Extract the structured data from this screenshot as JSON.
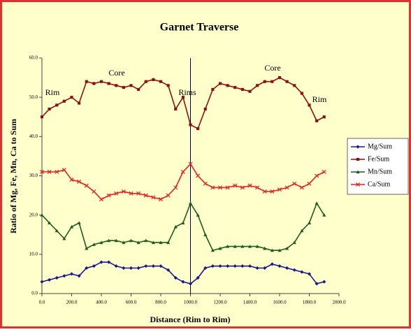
{
  "chart_data": {
    "type": "line",
    "title": "Garnet Traverse",
    "x_label": "Distance (Rim to Rim)",
    "y_label": "Ratio of Mg, Fe, Mn, Ca to Sum",
    "x": [
      0,
      50,
      100,
      150,
      200,
      250,
      300,
      350,
      400,
      450,
      500,
      550,
      600,
      650,
      700,
      750,
      800,
      850,
      900,
      950,
      1000,
      1050,
      1100,
      1150,
      1200,
      1250,
      1300,
      1350,
      1400,
      1450,
      1500,
      1550,
      1600,
      1650,
      1700,
      1750,
      1800,
      1850,
      1900
    ],
    "series": [
      {
        "name": "Mg/Sum",
        "color": "#1a1a8c",
        "values": [
          3,
          3.5,
          4,
          4.5,
          5,
          4.5,
          6.5,
          7,
          8,
          8,
          7,
          6.5,
          6.5,
          6.5,
          7,
          7,
          7,
          6,
          4,
          3,
          2.5,
          4,
          6.5,
          7,
          7,
          7,
          7,
          7,
          7,
          6.5,
          6.5,
          7.5,
          7,
          6.5,
          6,
          5.5,
          5,
          2.5,
          3
        ]
      },
      {
        "name": "Fe/Sum",
        "color": "#8b1010",
        "values": [
          45,
          47,
          48,
          49,
          50,
          48.5,
          54,
          53.5,
          54,
          53.5,
          53,
          52.5,
          53,
          52,
          54,
          54.5,
          54,
          53,
          47,
          50,
          43,
          42,
          47,
          52,
          53.5,
          53,
          52.5,
          52,
          51.5,
          53,
          54,
          54,
          55,
          54,
          53,
          51,
          48,
          44,
          45
        ]
      },
      {
        "name": "Mn/Sum",
        "color": "#1f5c1f",
        "values": [
          20,
          18,
          16,
          14,
          17,
          18,
          11.5,
          12.5,
          13,
          13.5,
          13.5,
          13,
          13.5,
          13,
          13.5,
          13,
          13,
          13,
          17,
          18,
          23,
          20,
          15,
          11,
          11.5,
          12,
          12,
          12,
          12,
          12,
          11.5,
          11,
          11,
          11.5,
          13,
          16,
          18,
          23,
          20
        ]
      },
      {
        "name": "Ca/Sum",
        "color": "#e82020",
        "values": [
          31,
          31,
          31,
          31.5,
          29,
          28.5,
          27.5,
          26,
          24,
          25,
          25.5,
          26,
          25.5,
          25.5,
          25,
          24.5,
          24,
          25,
          27,
          31,
          33,
          30,
          28,
          27,
          27,
          27,
          27.5,
          27,
          27.5,
          27,
          26,
          26,
          26.5,
          27,
          28,
          27,
          28,
          30,
          31
        ]
      }
    ],
    "annotations": [
      "Rim",
      "Core",
      "Rims",
      "Core",
      "Rim"
    ],
    "vline": 1000,
    "xlim": [
      0,
      2000
    ],
    "xticks": [
      {
        "value": 0,
        "label": "0.0"
      },
      {
        "value": 200,
        "label": "200.0"
      },
      {
        "value": 400,
        "label": "400.0"
      },
      {
        "value": 600,
        "label": "600.0"
      },
      {
        "value": 800,
        "label": "800.0"
      },
      {
        "value": 1000,
        "label": "1000.0"
      },
      {
        "value": 1200,
        "label": "1200.0"
      },
      {
        "value": 1400,
        "label": "1400.0"
      },
      {
        "value": 1600,
        "label": "1600.0"
      },
      {
        "value": 1800,
        "label": "1800.0"
      },
      {
        "value": 2000,
        "label": "2000.0"
      }
    ],
    "ylim": [
      0,
      60
    ],
    "yticks": [
      {
        "value": 0,
        "label": "0.0"
      },
      {
        "value": 10,
        "label": "10.0"
      },
      {
        "value": 20,
        "label": "20.0"
      },
      {
        "value": 30,
        "label": "30.0"
      },
      {
        "value": 40,
        "label": "40.0"
      },
      {
        "value": 50,
        "label": "50.0"
      },
      {
        "value": 60,
        "label": "60.0"
      }
    ],
    "grid": false,
    "legend": "right"
  }
}
